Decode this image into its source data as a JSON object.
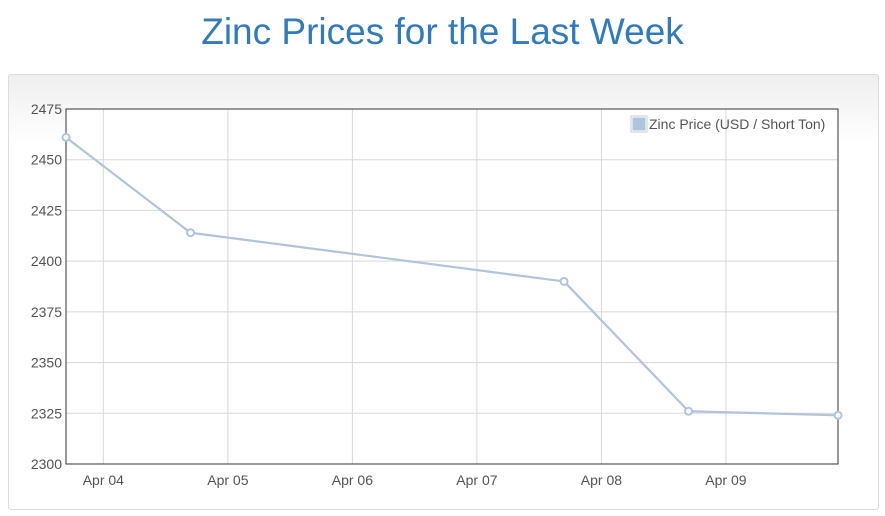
{
  "page": {
    "title": "Zinc Prices for the Last Week"
  },
  "colors": {
    "title": "#337ab7",
    "series_line": "#b0c4de",
    "grid": "#d8d8d8",
    "axis": "#333333",
    "tick_text": "#545454"
  },
  "chart_data": {
    "type": "line",
    "title": "",
    "xlabel": "",
    "ylabel": "",
    "x_ticks": [
      "Apr 04",
      "Apr 05",
      "Apr 06",
      "Apr 07",
      "Apr 08",
      "Apr 09"
    ],
    "y_ticks": [
      2300,
      2325,
      2350,
      2375,
      2400,
      2425,
      2450,
      2475
    ],
    "ylim": [
      2300,
      2475
    ],
    "xlim": [
      "Apr 03 16:48",
      "Apr 09 21:36"
    ],
    "grid": true,
    "legend": "top-right",
    "series": [
      {
        "name": "Zinc Price (USD / Short Ton)",
        "x": [
          "Apr 03 16:48",
          "Apr 04 16:48",
          "Apr 07 16:48",
          "Apr 08 16:48",
          "Apr 09 21:36"
        ],
        "values": [
          2461,
          2414,
          2390,
          2326,
          2324
        ]
      }
    ]
  }
}
